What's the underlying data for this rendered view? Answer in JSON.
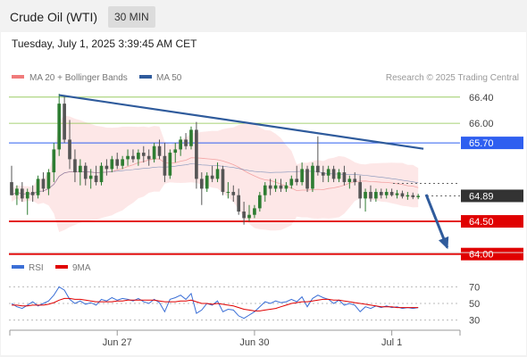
{
  "header": {
    "title": "Crude Oil (WTI)",
    "timeframe": "30 MIN"
  },
  "datetime": "Tuesday, July 1, 2025 3:39:45 AM CET",
  "legend": {
    "bollinger": {
      "label": "MA 20 + Bollinger Bands",
      "color": "#f07b7b"
    },
    "ma50": {
      "label": "MA 50",
      "color": "#2f5b9c"
    },
    "credit": "Research © 2025 Trading Central"
  },
  "colors": {
    "up": "#2e7d32",
    "down": "#555555",
    "trend": "#2f5b9c",
    "resistance": "#2f5ff0",
    "support": "#e00000",
    "target": "#8bc34a",
    "band": "#fde3e3",
    "rsi": "#3b6fd6",
    "rsi_ma": "#e00000"
  },
  "chart_data": [
    {
      "type": "candlestick",
      "ylim": [
        63.9,
        66.52
      ],
      "xlabels": [
        {
          "label": "Jun 27",
          "x": 20
        },
        {
          "label": "Jun 30",
          "x": 46
        },
        {
          "label": "Jul 1",
          "x": 72
        }
      ],
      "x_range": [
        0,
        79
      ],
      "levels": [
        {
          "value": 66.4,
          "label": "66.40",
          "kind": "target"
        },
        {
          "value": 66.0,
          "label": "66.00",
          "kind": "target"
        },
        {
          "value": 65.7,
          "label": "65.70",
          "kind": "resistance"
        },
        {
          "value": 64.89,
          "label": "64.89",
          "kind": "last"
        },
        {
          "value": 64.5,
          "label": "64.50",
          "kind": "support"
        },
        {
          "value": 64.0,
          "label": "64.00",
          "kind": "support"
        }
      ],
      "trendline": {
        "x": [
          9,
          78
        ],
        "y": [
          66.43,
          65.61
        ]
      },
      "arrow": {
        "x": [
          78.5,
          82.5
        ],
        "y": [
          64.91,
          64.1
        ]
      },
      "candles": [
        {
          "o": 65.1,
          "h": 65.35,
          "l": 64.9,
          "c": 64.9
        },
        {
          "o": 64.9,
          "h": 65.05,
          "l": 64.75,
          "c": 65.0
        },
        {
          "o": 65.0,
          "h": 65.1,
          "l": 64.8,
          "c": 64.85
        },
        {
          "o": 64.85,
          "h": 65.0,
          "l": 64.6,
          "c": 64.95
        },
        {
          "o": 64.95,
          "h": 65.05,
          "l": 64.8,
          "c": 64.9
        },
        {
          "o": 64.9,
          "h": 65.2,
          "l": 64.85,
          "c": 65.15
        },
        {
          "o": 65.15,
          "h": 65.25,
          "l": 64.95,
          "c": 65.0
        },
        {
          "o": 65.0,
          "h": 65.3,
          "l": 64.9,
          "c": 65.25
        },
        {
          "o": 65.25,
          "h": 65.7,
          "l": 65.1,
          "c": 65.6
        },
        {
          "o": 65.6,
          "h": 66.45,
          "l": 65.5,
          "c": 66.3
        },
        {
          "o": 66.3,
          "h": 66.42,
          "l": 65.7,
          "c": 65.75
        },
        {
          "o": 65.75,
          "h": 66.05,
          "l": 65.3,
          "c": 65.45
        },
        {
          "o": 65.45,
          "h": 65.6,
          "l": 65.1,
          "c": 65.25
        },
        {
          "o": 65.25,
          "h": 65.45,
          "l": 65.05,
          "c": 65.35
        },
        {
          "o": 65.35,
          "h": 65.4,
          "l": 65.05,
          "c": 65.15
        },
        {
          "o": 65.15,
          "h": 65.3,
          "l": 65.0,
          "c": 65.2
        },
        {
          "o": 65.2,
          "h": 65.35,
          "l": 65.05,
          "c": 65.1
        },
        {
          "o": 65.1,
          "h": 65.4,
          "l": 65.05,
          "c": 65.35
        },
        {
          "o": 65.35,
          "h": 65.45,
          "l": 65.2,
          "c": 65.3
        },
        {
          "o": 65.3,
          "h": 65.5,
          "l": 65.25,
          "c": 65.45
        },
        {
          "o": 65.45,
          "h": 65.55,
          "l": 65.3,
          "c": 65.35
        },
        {
          "o": 65.35,
          "h": 65.5,
          "l": 65.3,
          "c": 65.45
        },
        {
          "o": 65.45,
          "h": 65.6,
          "l": 65.35,
          "c": 65.5
        },
        {
          "o": 65.5,
          "h": 65.6,
          "l": 65.4,
          "c": 65.45
        },
        {
          "o": 65.45,
          "h": 65.6,
          "l": 65.35,
          "c": 65.55
        },
        {
          "o": 65.55,
          "h": 65.65,
          "l": 65.4,
          "c": 65.5
        },
        {
          "o": 65.5,
          "h": 65.6,
          "l": 65.35,
          "c": 65.45
        },
        {
          "o": 65.45,
          "h": 65.7,
          "l": 65.4,
          "c": 65.65
        },
        {
          "o": 65.65,
          "h": 65.75,
          "l": 65.45,
          "c": 65.5
        },
        {
          "o": 65.5,
          "h": 65.7,
          "l": 65.1,
          "c": 65.2
        },
        {
          "o": 65.2,
          "h": 65.6,
          "l": 65.15,
          "c": 65.55
        },
        {
          "o": 65.55,
          "h": 65.7,
          "l": 65.4,
          "c": 65.6
        },
        {
          "o": 65.6,
          "h": 65.8,
          "l": 65.5,
          "c": 65.75
        },
        {
          "o": 65.75,
          "h": 65.85,
          "l": 65.6,
          "c": 65.65
        },
        {
          "o": 65.65,
          "h": 65.95,
          "l": 65.6,
          "c": 65.9
        },
        {
          "o": 65.9,
          "h": 66.02,
          "l": 65.0,
          "c": 65.15
        },
        {
          "o": 65.15,
          "h": 65.25,
          "l": 64.75,
          "c": 65.0
        },
        {
          "o": 65.0,
          "h": 65.25,
          "l": 64.95,
          "c": 65.2
        },
        {
          "o": 65.2,
          "h": 65.35,
          "l": 65.1,
          "c": 65.15
        },
        {
          "o": 65.15,
          "h": 65.4,
          "l": 65.1,
          "c": 65.3
        },
        {
          "o": 65.3,
          "h": 65.35,
          "l": 64.9,
          "c": 64.95
        },
        {
          "o": 64.95,
          "h": 65.1,
          "l": 64.85,
          "c": 64.95
        },
        {
          "o": 64.95,
          "h": 65.05,
          "l": 64.8,
          "c": 64.9
        },
        {
          "o": 64.9,
          "h": 65.0,
          "l": 64.6,
          "c": 64.65
        },
        {
          "o": 64.65,
          "h": 64.8,
          "l": 64.45,
          "c": 64.55
        },
        {
          "o": 64.55,
          "h": 64.75,
          "l": 64.5,
          "c": 64.6
        },
        {
          "o": 64.6,
          "h": 64.75,
          "l": 64.55,
          "c": 64.7
        },
        {
          "o": 64.7,
          "h": 64.95,
          "l": 64.65,
          "c": 64.9
        },
        {
          "o": 64.9,
          "h": 65.1,
          "l": 64.8,
          "c": 65.05
        },
        {
          "o": 65.05,
          "h": 65.15,
          "l": 64.9,
          "c": 65.0
        },
        {
          "o": 65.0,
          "h": 65.15,
          "l": 64.95,
          "c": 65.05
        },
        {
          "o": 65.05,
          "h": 65.15,
          "l": 64.95,
          "c": 65.0
        },
        {
          "o": 65.0,
          "h": 65.1,
          "l": 64.95,
          "c": 65.05
        },
        {
          "o": 65.05,
          "h": 65.2,
          "l": 65.0,
          "c": 65.15
        },
        {
          "o": 65.15,
          "h": 65.35,
          "l": 65.05,
          "c": 65.1
        },
        {
          "o": 65.1,
          "h": 65.4,
          "l": 65.05,
          "c": 65.3
        },
        {
          "o": 65.3,
          "h": 65.35,
          "l": 64.95,
          "c": 65.0
        },
        {
          "o": 65.0,
          "h": 65.4,
          "l": 64.95,
          "c": 65.35
        },
        {
          "o": 65.35,
          "h": 65.8,
          "l": 65.2,
          "c": 65.25
        },
        {
          "o": 65.25,
          "h": 65.35,
          "l": 65.1,
          "c": 65.2
        },
        {
          "o": 65.2,
          "h": 65.35,
          "l": 65.1,
          "c": 65.3
        },
        {
          "o": 65.3,
          "h": 65.35,
          "l": 65.1,
          "c": 65.15
        },
        {
          "o": 65.15,
          "h": 65.3,
          "l": 65.1,
          "c": 65.25
        },
        {
          "o": 65.25,
          "h": 65.35,
          "l": 65.05,
          "c": 65.1
        },
        {
          "o": 65.1,
          "h": 65.2,
          "l": 65.0,
          "c": 65.15
        },
        {
          "o": 65.15,
          "h": 65.25,
          "l": 65.05,
          "c": 65.1
        },
        {
          "o": 65.1,
          "h": 65.2,
          "l": 64.7,
          "c": 64.85
        },
        {
          "o": 64.85,
          "h": 65.0,
          "l": 64.65,
          "c": 64.95
        },
        {
          "o": 64.95,
          "h": 65.05,
          "l": 64.8,
          "c": 64.85
        },
        {
          "o": 64.85,
          "h": 65.0,
          "l": 64.8,
          "c": 64.95
        },
        {
          "o": 64.95,
          "h": 65.0,
          "l": 64.85,
          "c": 64.9
        },
        {
          "o": 64.9,
          "h": 65.0,
          "l": 64.85,
          "c": 64.95
        },
        {
          "o": 64.95,
          "h": 65.0,
          "l": 64.88,
          "c": 64.9
        },
        {
          "o": 64.9,
          "h": 64.98,
          "l": 64.85,
          "c": 64.93
        },
        {
          "o": 64.93,
          "h": 64.97,
          "l": 64.85,
          "c": 64.88
        },
        {
          "o": 64.88,
          "h": 64.95,
          "l": 64.83,
          "c": 64.9
        },
        {
          "o": 64.9,
          "h": 64.94,
          "l": 64.84,
          "c": 64.87
        },
        {
          "o": 64.87,
          "h": 64.92,
          "l": 64.84,
          "c": 64.89
        }
      ]
    },
    {
      "type": "line",
      "legend": [
        {
          "label": "RSI",
          "color": "#3b6fd6"
        },
        {
          "label": "9MA",
          "color": "#e00000"
        }
      ],
      "ylim": [
        22,
        78
      ],
      "yticks": [
        70,
        50,
        30
      ],
      "rsi": [
        50,
        46,
        44,
        48,
        52,
        47,
        50,
        53,
        60,
        70,
        66,
        55,
        50,
        53,
        49,
        51,
        48,
        55,
        53,
        57,
        54,
        56,
        55,
        53,
        56,
        52,
        50,
        55,
        51,
        40,
        55,
        57,
        60,
        55,
        62,
        38,
        42,
        50,
        48,
        53,
        40,
        43,
        42,
        35,
        32,
        36,
        40,
        46,
        52,
        50,
        53,
        51,
        52,
        55,
        52,
        58,
        46,
        56,
        60,
        57,
        55,
        50,
        54,
        48,
        50,
        48,
        40,
        46,
        44,
        47,
        45,
        47,
        45,
        46,
        44,
        45,
        44,
        45
      ],
      "ma": [
        48,
        48,
        47,
        47,
        48,
        48,
        48,
        49,
        51,
        54,
        56,
        56,
        55,
        55,
        54,
        53,
        52,
        52,
        52,
        52,
        53,
        53,
        54,
        54,
        54,
        54,
        54,
        54,
        53,
        52,
        52,
        52,
        53,
        53,
        54,
        52,
        50,
        50,
        49,
        50,
        49,
        48,
        47,
        45,
        43,
        42,
        41,
        41,
        42,
        43,
        44,
        46,
        48,
        50,
        51,
        52,
        52,
        53,
        54,
        55,
        55,
        54,
        54,
        53,
        52,
        51,
        50,
        49,
        48,
        47,
        46,
        46,
        46,
        45,
        45,
        45,
        45,
        45
      ]
    }
  ]
}
